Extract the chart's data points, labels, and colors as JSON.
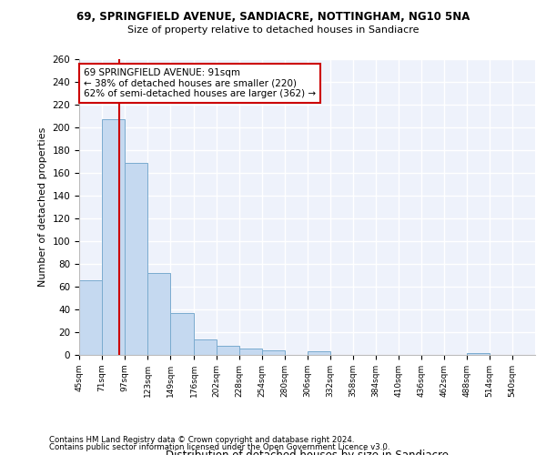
{
  "title1": "69, SPRINGFIELD AVENUE, SANDIACRE, NOTTINGHAM, NG10 5NA",
  "title2": "Size of property relative to detached houses in Sandiacre",
  "xlabel": "Distribution of detached houses by size in Sandiacre",
  "ylabel": "Number of detached properties",
  "bar_edges": [
    45,
    71,
    97,
    123,
    149,
    176,
    202,
    228,
    254,
    280,
    306,
    332,
    358,
    384,
    410,
    436,
    462,
    488,
    514,
    540,
    566
  ],
  "bar_heights": [
    66,
    207,
    169,
    72,
    37,
    14,
    8,
    6,
    4,
    0,
    3,
    0,
    0,
    0,
    0,
    0,
    0,
    2,
    0,
    0
  ],
  "bar_color": "#c5d9f0",
  "bar_edge_color": "#7aabcf",
  "property_line_x": 91,
  "annotation_line1": "69 SPRINGFIELD AVENUE: 91sqm",
  "annotation_line2": "← 38% of detached houses are smaller (220)",
  "annotation_line3": "62% of semi-detached houses are larger (362) →",
  "annotation_box_color": "#ffffff",
  "annotation_box_edge_color": "#cc0000",
  "property_line_color": "#cc0000",
  "background_color": "#eef2fb",
  "grid_color": "#ffffff",
  "ylim": [
    0,
    260
  ],
  "yticks": [
    0,
    20,
    40,
    60,
    80,
    100,
    120,
    140,
    160,
    180,
    200,
    220,
    240,
    260
  ],
  "footer1": "Contains HM Land Registry data © Crown copyright and database right 2024.",
  "footer2": "Contains public sector information licensed under the Open Government Licence v3.0."
}
